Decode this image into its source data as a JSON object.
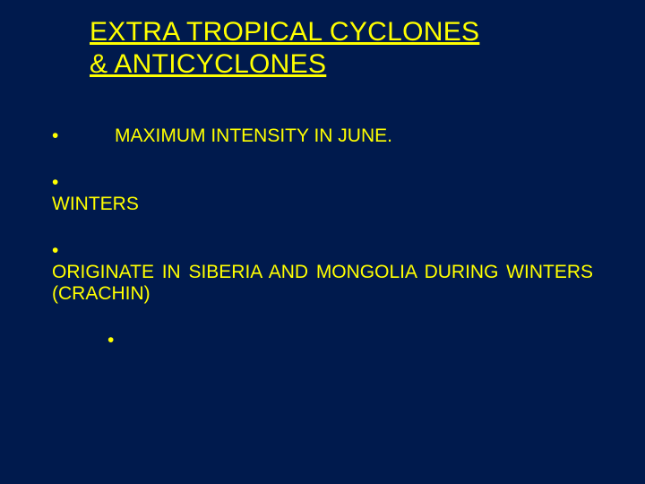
{
  "slide": {
    "background_color": "#001a4d",
    "text_color": "#ffff00",
    "title_fontsize": 30,
    "body_fontsize": 21,
    "title_line1": "EXTRA TROPICAL CYCLONES",
    "title_line2": "& ANTICYCLONES",
    "bullets": [
      {
        "marker": "•",
        "text": "MAXIMUM INTENSITY IN JUNE.",
        "layout": "inline"
      },
      {
        "marker": "•",
        "text": "WINTERS",
        "layout": "wrap"
      },
      {
        "marker": "•",
        "text": "ORIGINATE IN SIBERIA AND MONGOLIA DURING WINTERS (CRACHIN)",
        "layout": "wrap-justify"
      },
      {
        "marker": "•",
        "text": "",
        "layout": "lone"
      }
    ]
  }
}
